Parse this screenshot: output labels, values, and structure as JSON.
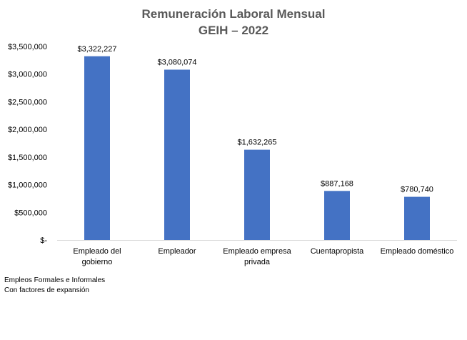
{
  "chart_data": {
    "type": "bar",
    "title": [
      "Remuneración Laboral Mensual",
      "GEIH – 2022"
    ],
    "categories": [
      [
        "Empleado del",
        "gobierno"
      ],
      [
        "Empleador"
      ],
      [
        "Empleado empresa",
        "privada"
      ],
      [
        "Cuentapropista"
      ],
      [
        "Empleado doméstico"
      ]
    ],
    "values": [
      3322227,
      3080074,
      1632265,
      887168,
      780740
    ],
    "value_labels": [
      "$3,322,227",
      "$3,080,074",
      "$1,632,265",
      "$887,168",
      "$780,740"
    ],
    "y_ticks": [
      0,
      500000,
      1000000,
      1500000,
      2000000,
      2500000,
      3000000,
      3500000
    ],
    "y_tick_labels": [
      "$-",
      "$500,000",
      "$1,000,000",
      "$1,500,000",
      "$2,000,000",
      "$2,500,000",
      "$3,000,000",
      "$3,500,000"
    ],
    "ylim": [
      0,
      3500000
    ],
    "xlabel": "",
    "ylabel": "",
    "bar_color": "#4472C4",
    "grid": false,
    "legend": "none"
  },
  "notes": {
    "line1": "Empleos Formales e Informales",
    "line2": "Con factores de expansión"
  }
}
